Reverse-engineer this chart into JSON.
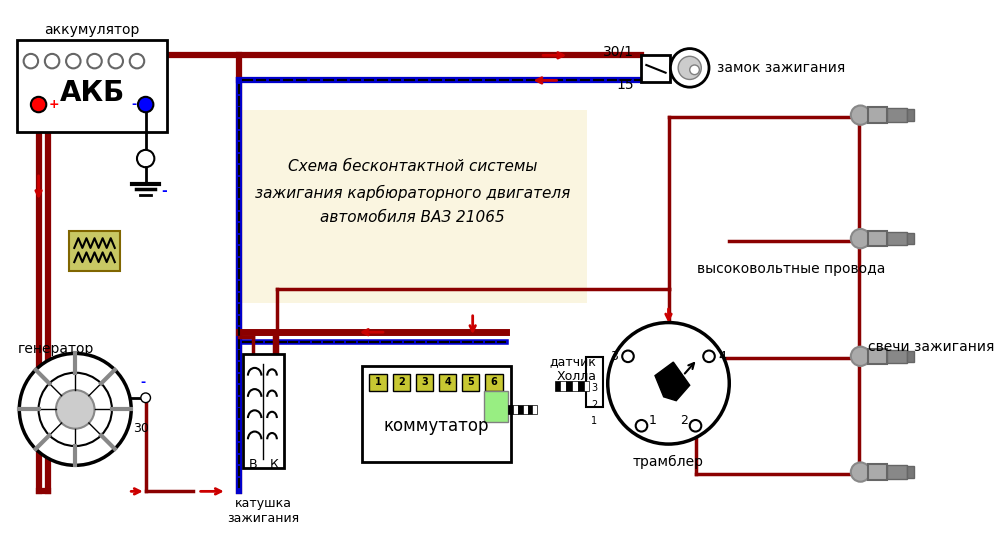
{
  "title": "Схема бесконтактной системы\nзажигания карбюраторного двигателя\nавтомобиля ВАЗ 21065",
  "label_akkum": "аккумулятор",
  "label_akb": "АКБ",
  "label_gen": "генератор",
  "label_30": "30",
  "label_coil_b": "В",
  "label_coil_k": "К",
  "label_coil": "катушка\nзажигания",
  "label_comm": "коммутатор",
  "label_zamok": "замок зажигания",
  "label_301": "30/1",
  "label_15": "15",
  "label_hvwires": "высоковольтные провода",
  "label_sparks": "свечи зажигания",
  "label_trambler": "трамблер",
  "label_datchi": "датчик\nХолла",
  "bg_color": "#ffffff",
  "wire_dark_red": "#8b0000",
  "wire_red": "#cc0000",
  "wire_blue": "#0000cc",
  "box_bg": "#faf5e0",
  "comm_yellow": "#c8c832",
  "fuse_color": "#c8c864"
}
